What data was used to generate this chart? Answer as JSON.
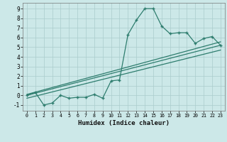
{
  "title": "",
  "xlabel": "Humidex (Indice chaleur)",
  "bg_color": "#cce8e8",
  "grid_color": "#aacccc",
  "line_color": "#2e7d6e",
  "xlim": [
    -0.5,
    23.5
  ],
  "ylim": [
    -1.6,
    9.6
  ],
  "xticks": [
    0,
    1,
    2,
    3,
    4,
    5,
    6,
    7,
    8,
    9,
    10,
    11,
    12,
    13,
    14,
    15,
    16,
    17,
    18,
    19,
    20,
    21,
    22,
    23
  ],
  "yticks": [
    -1,
    0,
    1,
    2,
    3,
    4,
    5,
    6,
    7,
    8,
    9
  ],
  "line1_x": [
    0,
    1,
    2,
    3,
    4,
    5,
    6,
    7,
    8,
    9,
    10,
    11,
    12,
    13,
    14,
    15,
    16,
    17,
    18,
    19,
    20,
    21,
    22,
    23
  ],
  "line1_y": [
    0.0,
    0.3,
    -1.0,
    -0.8,
    0.0,
    -0.3,
    -0.2,
    -0.2,
    0.1,
    -0.3,
    1.5,
    1.6,
    6.3,
    7.8,
    9.0,
    9.0,
    7.2,
    6.4,
    6.5,
    6.5,
    5.4,
    5.9,
    6.1,
    5.2
  ],
  "line2_x": [
    0,
    23
  ],
  "line2_y": [
    0.0,
    5.2
  ],
  "line3_x": [
    0,
    23
  ],
  "line3_y": [
    -0.3,
    4.7
  ],
  "line4_x": [
    0,
    23
  ],
  "line4_y": [
    0.1,
    5.55
  ]
}
